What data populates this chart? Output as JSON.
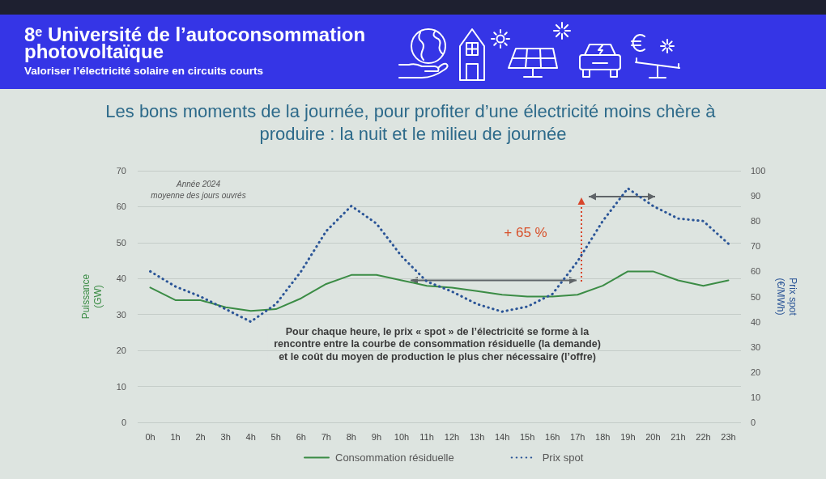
{
  "chart_data": {
    "type": "line",
    "title": "Les bons moments de la journée, pour profiter d’une électricité moins chère à produire : la nuit et le milieu de journée",
    "ylabel": "Puissance\n(GW)",
    "y2label": "Prix spot\n(€/MWh)",
    "categories": [
      "0h",
      "1h",
      "2h",
      "3h",
      "4h",
      "5h",
      "6h",
      "7h",
      "8h",
      "9h",
      "10h",
      "11h",
      "12h",
      "13h",
      "14h",
      "15h",
      "16h",
      "17h",
      "18h",
      "19h",
      "20h",
      "21h",
      "22h",
      "23h"
    ],
    "series": [
      {
        "name": "Consommation résiduelle",
        "color": "#3b8c45",
        "line_style": "solid",
        "values": [
          37.5,
          34,
          34,
          32,
          31,
          31.5,
          34.5,
          38.5,
          41,
          41,
          39.5,
          38,
          37.5,
          36.5,
          35.5,
          35,
          35,
          35.5,
          38,
          42,
          42,
          39.5,
          38,
          39.5
        ]
      },
      {
        "name": "Prix spot",
        "color": "#2b5597",
        "line_style": "dotted",
        "axis": "y2",
        "values": [
          60,
          54,
          50,
          45,
          40,
          47,
          60,
          76,
          86,
          79,
          66,
          56,
          52,
          47,
          44,
          46,
          51,
          64,
          80,
          93,
          86,
          81,
          80,
          71
        ]
      }
    ],
    "ylim": [
      0,
      70
    ],
    "yticks": [
      0,
      10,
      20,
      30,
      40,
      50,
      60,
      70
    ],
    "y2lim": [
      0,
      100
    ],
    "y2ticks": [
      0,
      10,
      20,
      30,
      40,
      50,
      60,
      70,
      80,
      90,
      100
    ],
    "grid": "y",
    "legend": "bottom",
    "marker": "none",
    "annotations": [
      "8ᵉ Université de l’autoconsommation\nphotovoltaïque",
      "Valoriser l’électricité solaire en circuits courts",
      "Année 2024\nmoyenne des jours ouvrés",
      "+ 65 %",
      "Pour chaque heure, le prix « spot » de l’électricité se forme à la\nrencontre entre la courbe de consommation résiduelle (la demande)\net le coût du moyen de production le plus cher nécessaire (l’offre)"
    ]
  }
}
